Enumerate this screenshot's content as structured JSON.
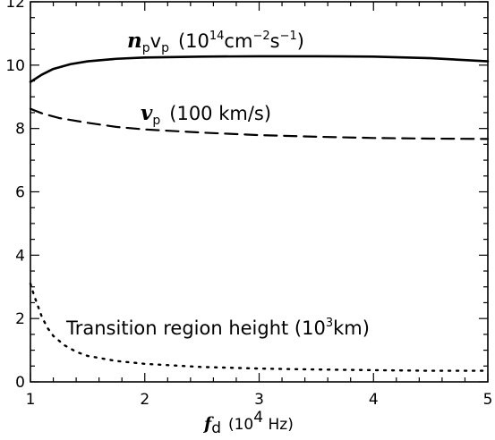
{
  "chart_data": {
    "type": "line",
    "xlabel": {
      "symbol": "f",
      "sub": "d",
      "units_pre": "(10",
      "units_sup": "4",
      "units_post": " Hz)"
    },
    "ylabel": "",
    "xlim": [
      1,
      5
    ],
    "ylim": [
      0,
      12
    ],
    "xticks": [
      1,
      2,
      3,
      4,
      5
    ],
    "yticks": [
      0,
      2,
      4,
      6,
      8,
      10,
      12
    ],
    "grid": false,
    "legend": "none",
    "series": [
      {
        "name": "n_p v_p",
        "style": "solid",
        "x": [
          1.0,
          1.1,
          1.2,
          1.35,
          1.5,
          1.75,
          2.0,
          2.5,
          3.0,
          3.5,
          4.0,
          4.5,
          5.0
        ],
        "y": [
          9.47,
          9.7,
          9.88,
          10.03,
          10.12,
          10.2,
          10.24,
          10.27,
          10.28,
          10.28,
          10.27,
          10.22,
          10.12
        ]
      },
      {
        "name": "v_p",
        "style": "dashed",
        "x": [
          1.0,
          1.1,
          1.25,
          1.5,
          1.75,
          2.0,
          2.5,
          3.0,
          3.5,
          4.0,
          4.5,
          5.0
        ],
        "y": [
          8.62,
          8.48,
          8.33,
          8.18,
          8.05,
          7.97,
          7.87,
          7.79,
          7.74,
          7.7,
          7.68,
          7.67
        ]
      },
      {
        "name": "Transition region height",
        "style": "dotted",
        "x": [
          1.0,
          1.03,
          1.07,
          1.1,
          1.15,
          1.2,
          1.3,
          1.4,
          1.5,
          1.75,
          2.0,
          2.5,
          3.0,
          3.5,
          4.0,
          4.5,
          5.0
        ],
        "y": [
          3.1,
          2.75,
          2.35,
          2.05,
          1.7,
          1.45,
          1.15,
          0.95,
          0.82,
          0.66,
          0.57,
          0.47,
          0.42,
          0.39,
          0.37,
          0.35,
          0.35
        ]
      }
    ],
    "annotations": {
      "np": {
        "symbol_n": "n",
        "sub_p1": "p",
        "symbol_v": "v",
        "sub_p2": "p",
        "units_pre": "(10",
        "sup_14": "14",
        "units_mid": "cm",
        "sup_m2": "−2",
        "units_s": "s",
        "sup_m1": "−1",
        "units_post": ")"
      },
      "vp": {
        "symbol": "v",
        "sub": "p",
        "units": "(100 km/s)"
      },
      "tr": {
        "text_pre": "Transition region height (10",
        "sup": "3",
        "text_post": "km)"
      }
    }
  }
}
